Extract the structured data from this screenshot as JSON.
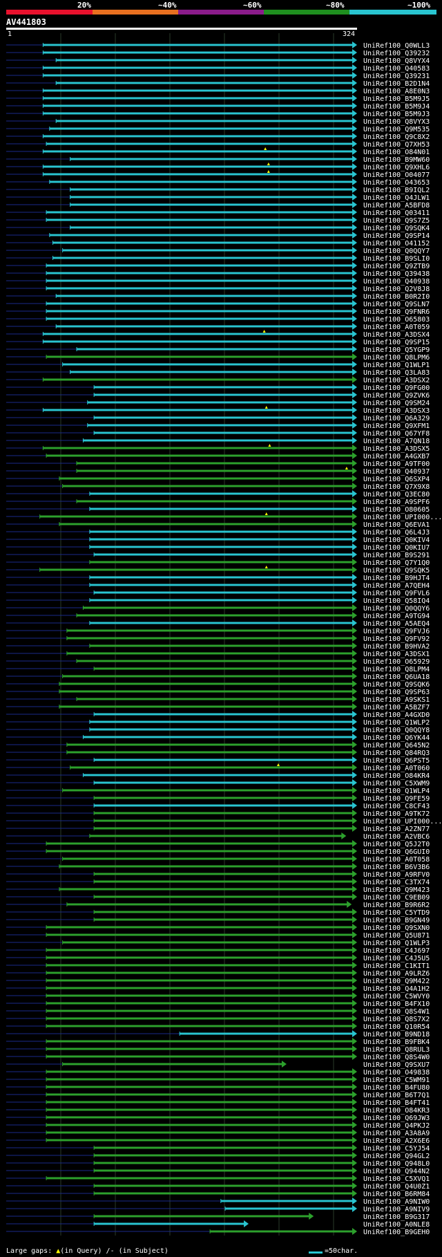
{
  "chart_data": {
    "type": "alignment-hits",
    "title": "AV441803",
    "query_start": "1",
    "query_end": "324",
    "query_length": 324,
    "legend": {
      "labels": [
        "20%",
        "~40%",
        "~60%",
        "~80%",
        "~100%"
      ],
      "colors": [
        "#e8112d",
        "#e87020",
        "#8b1c8b",
        "#1f8f1f",
        "#29c4d0"
      ]
    },
    "series_colors": {
      "cyan": "#29c4d0",
      "green": "#2ca02c"
    },
    "hits": [
      {
        "name": "UniRef100_Q0WLL3",
        "start": 35,
        "end": 324,
        "color": "cyan"
      },
      {
        "name": "UniRef100_Q39232",
        "start": 35,
        "end": 324,
        "color": "cyan"
      },
      {
        "name": "UniRef100_Q8VYX4",
        "start": 47,
        "end": 324,
        "color": "cyan"
      },
      {
        "name": "UniRef100_Q40583",
        "start": 35,
        "end": 324,
        "color": "cyan"
      },
      {
        "name": "UniRef100_Q39231",
        "start": 35,
        "end": 324,
        "color": "cyan"
      },
      {
        "name": "UniRef100_B2D1N4",
        "start": 47,
        "end": 324,
        "color": "cyan"
      },
      {
        "name": "UniRef100_A8E0N3",
        "start": 35,
        "end": 324,
        "color": "cyan"
      },
      {
        "name": "UniRef100_B5M9J5",
        "start": 35,
        "end": 324,
        "color": "cyan"
      },
      {
        "name": "UniRef100_B5M9J4",
        "start": 35,
        "end": 324,
        "color": "cyan"
      },
      {
        "name": "UniRef100_B5M9J3",
        "start": 35,
        "end": 324,
        "color": "cyan"
      },
      {
        "name": "UniRef100_Q8VYX3",
        "start": 47,
        "end": 324,
        "color": "cyan"
      },
      {
        "name": "UniRef100_Q9M535",
        "start": 41,
        "end": 324,
        "color": "cyan"
      },
      {
        "name": "UniRef100_Q9C8X2",
        "start": 35,
        "end": 324,
        "color": "cyan"
      },
      {
        "name": "UniRef100_Q7XH53",
        "start": 38,
        "end": 324,
        "color": "cyan"
      },
      {
        "name": "UniRef100_O84N01",
        "start": 35,
        "end": 324,
        "color": "cyan",
        "gap": 240
      },
      {
        "name": "UniRef100_B9MW60",
        "start": 60,
        "end": 324,
        "color": "cyan"
      },
      {
        "name": "UniRef100_Q9XHL6",
        "start": 35,
        "end": 324,
        "color": "cyan",
        "gap": 243
      },
      {
        "name": "UniRef100_O04077",
        "start": 35,
        "end": 324,
        "color": "cyan",
        "gap": 243
      },
      {
        "name": "UniRef100_O43653",
        "start": 41,
        "end": 324,
        "color": "cyan"
      },
      {
        "name": "UniRef100_B9IQL2",
        "start": 60,
        "end": 324,
        "color": "cyan"
      },
      {
        "name": "UniRef100_Q4JLW1",
        "start": 60,
        "end": 324,
        "color": "cyan"
      },
      {
        "name": "UniRef100_A5BFD8",
        "start": 60,
        "end": 324,
        "color": "cyan"
      },
      {
        "name": "UniRef100_Q03411",
        "start": 38,
        "end": 324,
        "color": "cyan"
      },
      {
        "name": "UniRef100_Q9S7Z5",
        "start": 38,
        "end": 324,
        "color": "cyan"
      },
      {
        "name": "UniRef100_Q9SQK4",
        "start": 60,
        "end": 324,
        "color": "cyan"
      },
      {
        "name": "UniRef100_Q9SP14",
        "start": 41,
        "end": 324,
        "color": "cyan"
      },
      {
        "name": "UniRef100_O41152",
        "start": 44,
        "end": 324,
        "color": "cyan"
      },
      {
        "name": "UniRef100_Q0QQY7",
        "start": 53,
        "end": 324,
        "color": "cyan"
      },
      {
        "name": "UniRef100_B9SLI0",
        "start": 44,
        "end": 324,
        "color": "cyan"
      },
      {
        "name": "UniRef100_Q9ZTB9",
        "start": 38,
        "end": 324,
        "color": "cyan"
      },
      {
        "name": "UniRef100_Q39438",
        "start": 38,
        "end": 324,
        "color": "cyan"
      },
      {
        "name": "UniRef100_Q40938",
        "start": 38,
        "end": 324,
        "color": "cyan"
      },
      {
        "name": "UniRef100_Q2V8J8",
        "start": 38,
        "end": 324,
        "color": "cyan"
      },
      {
        "name": "UniRef100_B0R2I0",
        "start": 47,
        "end": 324,
        "color": "cyan"
      },
      {
        "name": "UniRef100_Q9SLN7",
        "start": 38,
        "end": 324,
        "color": "cyan"
      },
      {
        "name": "UniRef100_Q9FNR6",
        "start": 38,
        "end": 324,
        "color": "cyan"
      },
      {
        "name": "UniRef100_O65803",
        "start": 38,
        "end": 324,
        "color": "cyan"
      },
      {
        "name": "UniRef100_A0T059",
        "start": 47,
        "end": 324,
        "color": "cyan"
      },
      {
        "name": "UniRef100_A3DSX4",
        "start": 35,
        "end": 324,
        "color": "cyan",
        "gap": 239
      },
      {
        "name": "UniRef100_Q9SP15",
        "start": 35,
        "end": 324,
        "color": "cyan"
      },
      {
        "name": "UniRef100_Q5YGP9",
        "start": 66,
        "end": 324,
        "color": "cyan"
      },
      {
        "name": "UniRef100_Q8LPM6",
        "start": 38,
        "end": 324,
        "color": "green"
      },
      {
        "name": "UniRef100_Q1WLP1",
        "start": 53,
        "end": 324,
        "color": "cyan"
      },
      {
        "name": "UniRef100_Q3LA83",
        "start": 60,
        "end": 324,
        "color": "cyan"
      },
      {
        "name": "UniRef100_A3DSX2",
        "start": 35,
        "end": 324,
        "color": "green"
      },
      {
        "name": "UniRef100_Q9FG00",
        "start": 82,
        "end": 324,
        "color": "cyan"
      },
      {
        "name": "UniRef100_Q9ZVK6",
        "start": 82,
        "end": 324,
        "color": "cyan"
      },
      {
        "name": "UniRef100_Q9SM24",
        "start": 76,
        "end": 324,
        "color": "cyan"
      },
      {
        "name": "UniRef100_A3DSX3",
        "start": 35,
        "end": 324,
        "color": "cyan",
        "gap": 241
      },
      {
        "name": "UniRef100_Q6A329",
        "start": 82,
        "end": 324,
        "color": "cyan"
      },
      {
        "name": "UniRef100_Q9XFM1",
        "start": 76,
        "end": 324,
        "color": "cyan"
      },
      {
        "name": "UniRef100_Q67YF8",
        "start": 82,
        "end": 324,
        "color": "cyan"
      },
      {
        "name": "UniRef100_A7QN18",
        "start": 72,
        "end": 324,
        "color": "cyan"
      },
      {
        "name": "UniRef100_A3DSX5",
        "start": 35,
        "end": 324,
        "color": "green",
        "gap": 244
      },
      {
        "name": "UniRef100_A4GXB7",
        "start": 38,
        "end": 324,
        "color": "green"
      },
      {
        "name": "UniRef100_A9TF00",
        "start": 66,
        "end": 324,
        "color": "green"
      },
      {
        "name": "UniRef100_Q40937",
        "start": 66,
        "end": 324,
        "color": "green",
        "gap": 315
      },
      {
        "name": "UniRef100_Q6SXP4",
        "start": 50,
        "end": 324,
        "color": "green"
      },
      {
        "name": "UniRef100_Q7X9X8",
        "start": 53,
        "end": 324,
        "color": "green"
      },
      {
        "name": "UniRef100_Q3EC80",
        "start": 78,
        "end": 324,
        "color": "cyan"
      },
      {
        "name": "UniRef100_A9SPF6",
        "start": 66,
        "end": 324,
        "color": "green"
      },
      {
        "name": "UniRef100_O80605",
        "start": 78,
        "end": 324,
        "color": "cyan"
      },
      {
        "name": "UniRef100_UPI000...",
        "start": 32,
        "end": 324,
        "color": "green",
        "gap": 241
      },
      {
        "name": "UniRef100_Q6EVA1",
        "start": 50,
        "end": 324,
        "color": "green"
      },
      {
        "name": "UniRef100_Q6L4J3",
        "start": 78,
        "end": 324,
        "color": "cyan"
      },
      {
        "name": "UniRef100_Q0KIV4",
        "start": 78,
        "end": 324,
        "color": "cyan"
      },
      {
        "name": "UniRef100_Q0KIU7",
        "start": 78,
        "end": 324,
        "color": "cyan"
      },
      {
        "name": "UniRef100_B9S291",
        "start": 82,
        "end": 324,
        "color": "cyan"
      },
      {
        "name": "UniRef100_Q7Y1Q0",
        "start": 78,
        "end": 324,
        "color": "green"
      },
      {
        "name": "UniRef100_Q9SQK5",
        "start": 32,
        "end": 324,
        "color": "green",
        "gap": 241
      },
      {
        "name": "UniRef100_B9HJT4",
        "start": 78,
        "end": 324,
        "color": "cyan"
      },
      {
        "name": "UniRef100_A7QEH4",
        "start": 78,
        "end": 324,
        "color": "cyan"
      },
      {
        "name": "UniRef100_Q9FVL6",
        "start": 82,
        "end": 324,
        "color": "cyan"
      },
      {
        "name": "UniRef100_Q58IQ4",
        "start": 78,
        "end": 324,
        "color": "cyan"
      },
      {
        "name": "UniRef100_Q0QQY6",
        "start": 72,
        "end": 324,
        "color": "green"
      },
      {
        "name": "UniRef100_A9TG94",
        "start": 66,
        "end": 324,
        "color": "green"
      },
      {
        "name": "UniRef100_A5AEQ4",
        "start": 78,
        "end": 324,
        "color": "cyan"
      },
      {
        "name": "UniRef100_Q9FVJ6",
        "start": 57,
        "end": 324,
        "color": "green"
      },
      {
        "name": "UniRef100_Q9FV92",
        "start": 57,
        "end": 324,
        "color": "green"
      },
      {
        "name": "UniRef100_B9HVA2",
        "start": 78,
        "end": 324,
        "color": "green"
      },
      {
        "name": "UniRef100_A3DSX1",
        "start": 57,
        "end": 324,
        "color": "green"
      },
      {
        "name": "UniRef100_O65929",
        "start": 66,
        "end": 324,
        "color": "green"
      },
      {
        "name": "UniRef100_Q8LPM4",
        "start": 82,
        "end": 324,
        "color": "green"
      },
      {
        "name": "UniRef100_Q6UA18",
        "start": 53,
        "end": 324,
        "color": "green"
      },
      {
        "name": "UniRef100_Q9SQK6",
        "start": 50,
        "end": 324,
        "color": "green"
      },
      {
        "name": "UniRef100_Q9SP63",
        "start": 50,
        "end": 324,
        "color": "green"
      },
      {
        "name": "UniRef100_A9SKS1",
        "start": 66,
        "end": 324,
        "color": "green"
      },
      {
        "name": "UniRef100_A5BZF7",
        "start": 50,
        "end": 324,
        "color": "green"
      },
      {
        "name": "UniRef100_A4GXD0",
        "start": 82,
        "end": 324,
        "color": "cyan"
      },
      {
        "name": "UniRef100_Q1WLP2",
        "start": 78,
        "end": 324,
        "color": "cyan"
      },
      {
        "name": "UniRef100_Q0QQY8",
        "start": 78,
        "end": 324,
        "color": "cyan"
      },
      {
        "name": "UniRef100_Q6YK44",
        "start": 72,
        "end": 324,
        "color": "cyan"
      },
      {
        "name": "UniRef100_Q645N2",
        "start": 57,
        "end": 324,
        "color": "green"
      },
      {
        "name": "UniRef100_Q84RQ3",
        "start": 57,
        "end": 324,
        "color": "green"
      },
      {
        "name": "UniRef100_Q6PST5",
        "start": 82,
        "end": 324,
        "color": "cyan"
      },
      {
        "name": "UniRef100_A0T060",
        "start": 60,
        "end": 324,
        "color": "green",
        "gap": 252
      },
      {
        "name": "UniRef100_O84KR4",
        "start": 72,
        "end": 324,
        "color": "cyan"
      },
      {
        "name": "UniRef100_C5XWM9",
        "start": 82,
        "end": 324,
        "color": "cyan"
      },
      {
        "name": "UniRef100_Q1WLP4",
        "start": 53,
        "end": 324,
        "color": "green"
      },
      {
        "name": "UniRef100_Q9FE59",
        "start": 82,
        "end": 324,
        "color": "green"
      },
      {
        "name": "UniRef100_C8CF43",
        "start": 82,
        "end": 324,
        "color": "cyan"
      },
      {
        "name": "UniRef100_A9TK72",
        "start": 82,
        "end": 324,
        "color": "green"
      },
      {
        "name": "UniRef100_UPI000...",
        "start": 82,
        "end": 324,
        "color": "green"
      },
      {
        "name": "UniRef100_A2ZN77",
        "start": 82,
        "end": 324,
        "color": "green"
      },
      {
        "name": "UniRef100_A2VBC6",
        "start": 78,
        "end": 314,
        "color": "green"
      },
      {
        "name": "UniRef100_Q5J2T0",
        "start": 38,
        "end": 324,
        "color": "green"
      },
      {
        "name": "UniRef100_Q6GUI0",
        "start": 38,
        "end": 324,
        "color": "green"
      },
      {
        "name": "UniRef100_A0T058",
        "start": 53,
        "end": 324,
        "color": "green"
      },
      {
        "name": "UniRef100_B6V3B6",
        "start": 50,
        "end": 324,
        "color": "green"
      },
      {
        "name": "UniRef100_A9RFV0",
        "start": 82,
        "end": 324,
        "color": "green"
      },
      {
        "name": "UniRef100_C3TX74",
        "start": 82,
        "end": 324,
        "color": "green"
      },
      {
        "name": "UniRef100_Q9M423",
        "start": 50,
        "end": 324,
        "color": "green"
      },
      {
        "name": "UniRef100_C9EB09",
        "start": 82,
        "end": 324,
        "color": "green"
      },
      {
        "name": "UniRef100_B9R6R2",
        "start": 57,
        "end": 319,
        "color": "green"
      },
      {
        "name": "UniRef100_C5YTD9",
        "start": 82,
        "end": 324,
        "color": "green"
      },
      {
        "name": "UniRef100_B9GN49",
        "start": 82,
        "end": 324,
        "color": "green"
      },
      {
        "name": "UniRef100_Q9SXN0",
        "start": 38,
        "end": 324,
        "color": "green"
      },
      {
        "name": "UniRef100_Q5U871",
        "start": 38,
        "end": 324,
        "color": "green"
      },
      {
        "name": "UniRef100_Q1WLP3",
        "start": 53,
        "end": 324,
        "color": "green"
      },
      {
        "name": "UniRef100_C4J697",
        "start": 38,
        "end": 324,
        "color": "green"
      },
      {
        "name": "UniRef100_C4J5U5",
        "start": 38,
        "end": 324,
        "color": "green"
      },
      {
        "name": "UniRef100_C1KIT1",
        "start": 38,
        "end": 324,
        "color": "green"
      },
      {
        "name": "UniRef100_A9LRZ6",
        "start": 38,
        "end": 324,
        "color": "green"
      },
      {
        "name": "UniRef100_Q9M422",
        "start": 38,
        "end": 324,
        "color": "green"
      },
      {
        "name": "UniRef100_Q4A1H2",
        "start": 38,
        "end": 324,
        "color": "green"
      },
      {
        "name": "UniRef100_C5WVY0",
        "start": 38,
        "end": 324,
        "color": "green"
      },
      {
        "name": "UniRef100_B4FX10",
        "start": 38,
        "end": 324,
        "color": "green"
      },
      {
        "name": "UniRef100_Q8S4W1",
        "start": 38,
        "end": 324,
        "color": "green"
      },
      {
        "name": "UniRef100_Q8S7X2",
        "start": 38,
        "end": 324,
        "color": "green"
      },
      {
        "name": "UniRef100_Q10R54",
        "start": 38,
        "end": 324,
        "color": "green"
      },
      {
        "name": "UniRef100_B9ND18",
        "start": 161,
        "end": 324,
        "color": "cyan"
      },
      {
        "name": "UniRef100_B9FBK4",
        "start": 38,
        "end": 324,
        "color": "green"
      },
      {
        "name": "UniRef100_Q8RUL3",
        "start": 38,
        "end": 324,
        "color": "green"
      },
      {
        "name": "UniRef100_Q8S4W0",
        "start": 38,
        "end": 324,
        "color": "green"
      },
      {
        "name": "UniRef100_Q9SXU7",
        "start": 53,
        "end": 259,
        "color": "green"
      },
      {
        "name": "UniRef100_O49838",
        "start": 38,
        "end": 324,
        "color": "green"
      },
      {
        "name": "UniRef100_C5WM91",
        "start": 38,
        "end": 324,
        "color": "green"
      },
      {
        "name": "UniRef100_B4FU80",
        "start": 38,
        "end": 324,
        "color": "green"
      },
      {
        "name": "UniRef100_B6T7Q1",
        "start": 38,
        "end": 324,
        "color": "green"
      },
      {
        "name": "UniRef100_B4FT41",
        "start": 38,
        "end": 324,
        "color": "green"
      },
      {
        "name": "UniRef100_O84KR3",
        "start": 38,
        "end": 324,
        "color": "green"
      },
      {
        "name": "UniRef100_Q69JW3",
        "start": 38,
        "end": 324,
        "color": "green"
      },
      {
        "name": "UniRef100_Q4PKJ2",
        "start": 38,
        "end": 324,
        "color": "green"
      },
      {
        "name": "UniRef100_A3A8A9",
        "start": 38,
        "end": 324,
        "color": "green"
      },
      {
        "name": "UniRef100_A2X6E6",
        "start": 38,
        "end": 324,
        "color": "green"
      },
      {
        "name": "UniRef100_C5YJ54",
        "start": 82,
        "end": 324,
        "color": "green"
      },
      {
        "name": "UniRef100_Q94GL2",
        "start": 82,
        "end": 324,
        "color": "green"
      },
      {
        "name": "UniRef100_Q948L0",
        "start": 82,
        "end": 324,
        "color": "green"
      },
      {
        "name": "UniRef100_Q944N2",
        "start": 82,
        "end": 324,
        "color": "green"
      },
      {
        "name": "UniRef100_C5XVQ1",
        "start": 38,
        "end": 324,
        "color": "green"
      },
      {
        "name": "UniRef100_Q4U0Z1",
        "start": 82,
        "end": 324,
        "color": "green"
      },
      {
        "name": "UniRef100_B6RM84",
        "start": 82,
        "end": 324,
        "color": "green"
      },
      {
        "name": "UniRef100_A9NIW0",
        "start": 199,
        "end": 324,
        "color": "cyan"
      },
      {
        "name": "UniRef100_A9NIV9",
        "start": 203,
        "end": 324,
        "color": "cyan"
      },
      {
        "name": "UniRef100_B9G317",
        "start": 82,
        "end": 284,
        "color": "green"
      },
      {
        "name": "UniRef100_A0NLE8",
        "start": 82,
        "end": 224,
        "color": "cyan"
      },
      {
        "name": "UniRef100_B9GEH0",
        "start": 189,
        "end": 324,
        "color": "green"
      }
    ],
    "footer": {
      "large_gaps_label": "Large gaps:",
      "in_query": "(in Query)",
      "in_subject": "/- (in Subject)",
      "scale_label": "=50char."
    }
  }
}
